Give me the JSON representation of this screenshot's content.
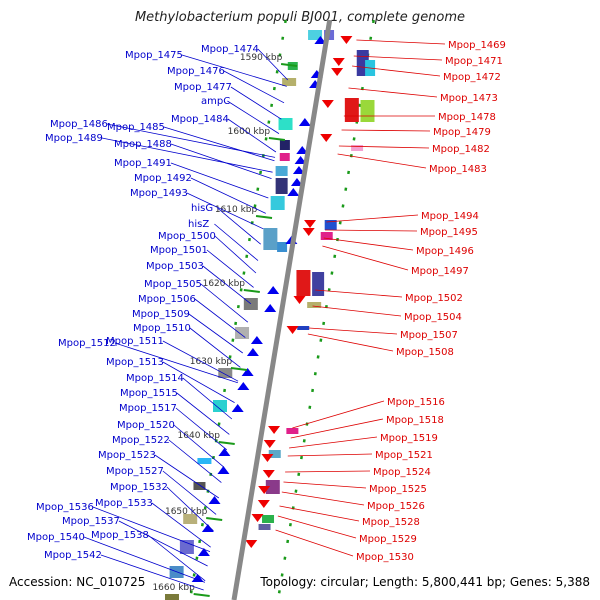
{
  "title": "Methylobacterium populi BJ001, complete genome",
  "accession": "Accession: NC_010725",
  "topology": "Topology: circular; Length: 5,800,441 bp; Genes: 5,388",
  "colors": {
    "left_label": "#0000cc",
    "right_label": "#dd0000",
    "backbone": "#888888",
    "tick": "#1a9a1a"
  },
  "kbp_ticks": [
    "1590 kbp",
    "1600 kbp",
    "1610 kbp",
    "1620 kbp",
    "1630 kbp",
    "1640 kbp",
    "1650 kbp",
    "1660 kbp"
  ],
  "left_genes": [
    "Mpop_1474",
    "Mpop_1475",
    "Mpop_1476",
    "Mpop_1477",
    "ampC",
    "Mpop_1484",
    "Mpop_1486",
    "Mpop_1485",
    "Mpop_1489",
    "Mpop_1488",
    "Mpop_1491",
    "Mpop_1492",
    "Mpop_1493",
    "hisG",
    "hisZ",
    "Mpop_1500",
    "Mpop_1501",
    "Mpop_1503",
    "Mpop_1505",
    "Mpop_1506",
    "Mpop_1509",
    "Mpop_1510",
    "Mpop_1512",
    "Mpop_1511",
    "Mpop_1513",
    "Mpop_1514",
    "Mpop_1515",
    "Mpop_1517",
    "Mpop_1520",
    "Mpop_1522",
    "Mpop_1523",
    "Mpop_1527",
    "Mpop_1532",
    "Mpop_1533",
    "Mpop_1536",
    "Mpop_1537",
    "Mpop_1540",
    "Mpop_1538",
    "Mpop_1542"
  ],
  "right_genes": [
    "Mpop_1469",
    "Mpop_1471",
    "Mpop_1472",
    "Mpop_1473",
    "Mpop_1478",
    "Mpop_1479",
    "Mpop_1482",
    "Mpop_1483",
    "Mpop_1494",
    "Mpop_1495",
    "Mpop_1496",
    "Mpop_1497",
    "Mpop_1502",
    "Mpop_1504",
    "Mpop_1507",
    "Mpop_1508",
    "Mpop_1516",
    "Mpop_1518",
    "Mpop_1519",
    "Mpop_1521",
    "Mpop_1524",
    "Mpop_1525",
    "Mpop_1526",
    "Mpop_1528",
    "Mpop_1529",
    "Mpop_1530"
  ]
}
